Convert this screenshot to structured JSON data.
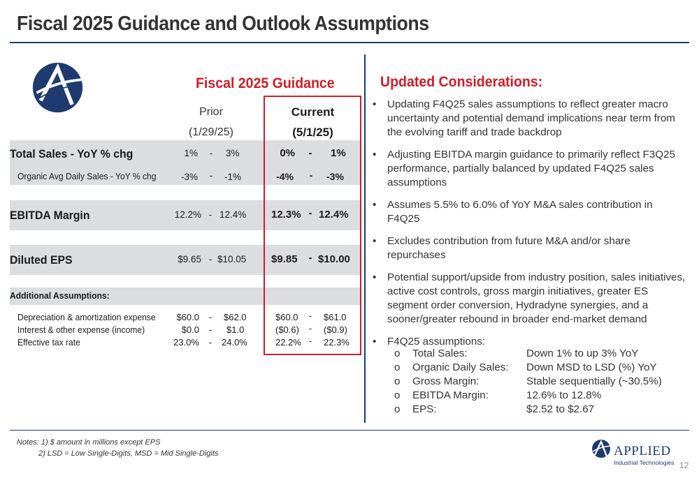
{
  "slide": {
    "title": "Fiscal 2025 Guidance and Outlook Assumptions",
    "page_number": "12"
  },
  "guidance": {
    "title": "Fiscal 2025 Guidance",
    "prior_header": [
      "Prior",
      "(1/29/25)"
    ],
    "current_header": [
      "Current",
      "(5/1/25)"
    ],
    "rows": [
      {
        "label": "Total Sales - YoY % chg",
        "prior_lo": "1%",
        "prior_hi": "3%",
        "current_lo": "0%",
        "current_hi": "1%"
      },
      {
        "label": "Organic Avg Daily Sales - YoY % chg",
        "prior_lo": "-3%",
        "prior_hi": "-1%",
        "current_lo": "-4%",
        "current_hi": "-3%"
      },
      {
        "label": "EBITDA Margin",
        "prior_lo": "12.2%",
        "prior_hi": "12.4%",
        "current_lo": "12.3%",
        "current_hi": "12.4%"
      },
      {
        "label": "Diluted EPS",
        "prior_lo": "$9.65",
        "prior_hi": "$10.05",
        "current_lo": "$9.85",
        "current_hi": "$10.00"
      }
    ],
    "additional_title": "Additional Assumptions:",
    "additional_rows": [
      {
        "label": "Depreciation & amortization expense",
        "prior_lo": "$60.0",
        "prior_hi": "$62.0",
        "current_lo": "$60.0",
        "current_hi": "$61.0"
      },
      {
        "label": "Interest & other expense (income)",
        "prior_lo": "$0.0",
        "prior_hi": "$1.0",
        "current_lo": "($0.6)",
        "current_hi": "($0.9)"
      },
      {
        "label": "Effective tax rate",
        "prior_lo": "23.0%",
        "prior_hi": "24.0%",
        "current_lo": "22.2%",
        "current_hi": "22.3%"
      }
    ],
    "dash": "-"
  },
  "considerations": {
    "title": "Updated Considerations:",
    "bullet_char": "•",
    "bullets": [
      "Updating F4Q25 sales assumptions to reflect greater macro uncertainty and potential demand implications near term from the evolving tariff and trade backdrop",
      "Adjusting EBITDA margin guidance to primarily reflect F3Q25 performance, partially balanced by updated F4Q25 sales assumptions",
      "Assumes 5.5% to 6.0% of YoY M&A sales contribution in F4Q25",
      "Excludes contribution from future M&A and/or share repurchases",
      "Potential support/upside from industry position, sales initiatives, active cost controls, gross margin initiatives, greater ES segment order conversion, Hydradyne synergies, and a sooner/greater rebound in broader end-market demand",
      "F4Q25 assumptions:"
    ],
    "sub_bullet_char": "o",
    "assumptions": [
      {
        "key": "Total Sales:",
        "value": "Down 1% to up 3% YoY"
      },
      {
        "key": "Organic Daily Sales:",
        "value": "Down MSD to LSD (%) YoY"
      },
      {
        "key": "Gross Margin:",
        "value": "Stable sequentially (~30.5%)"
      },
      {
        "key": "EBITDA Margin:",
        "value": "12.6% to 12.8%"
      },
      {
        "key": "EPS:",
        "value": "$2.52 to $2.67"
      }
    ]
  },
  "notes": {
    "line1": "Notes: 1) $ amount in millions except EPS",
    "line2": "2) LSD = Low Single-Digits, MSD = Mid Single-Digits"
  },
  "brand": {
    "logo_text": "APPLIED",
    "logo_subtext": "Industrial Technologies",
    "navy": "#1f3a6e",
    "red": "#cc1f2a",
    "band_gray": "#dcdde1"
  }
}
